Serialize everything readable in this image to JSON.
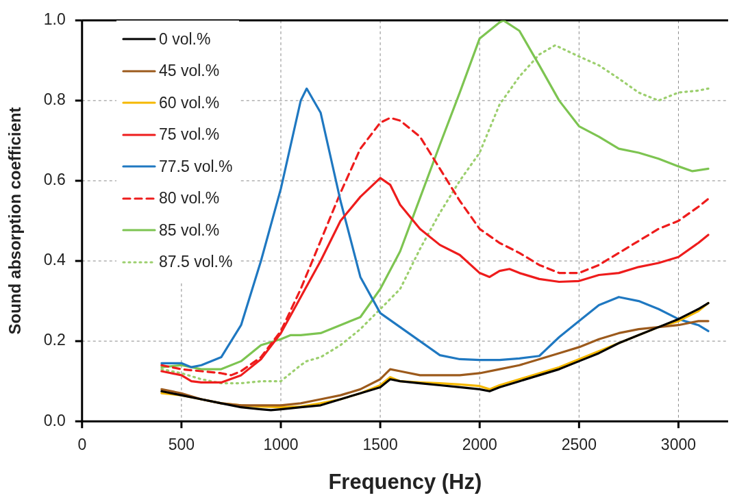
{
  "chart_data": {
    "type": "line",
    "xlabel": "Frequency (Hz)",
    "ylabel": "Sound absorption coefficient",
    "xlim": [
      0,
      3250
    ],
    "xticks": [
      0,
      500,
      1000,
      1500,
      2000,
      2500,
      3000
    ],
    "ylim": [
      0,
      1.0
    ],
    "yticks": [
      {
        "value": 0,
        "label": "0.0"
      },
      0.2,
      0.4,
      0.6,
      0.8,
      {
        "value": 1.0,
        "label": "1.0"
      }
    ],
    "grid": true,
    "legend": "top left",
    "marker": "none",
    "series": [
      {
        "name": "0 vol.%",
        "color": "#000000",
        "line_style": "solid",
        "x": [
          400,
          500,
          600,
          700,
          800,
          900,
          950,
          1000,
          1100,
          1200,
          1300,
          1400,
          1500,
          1550,
          1600,
          1700,
          1800,
          1900,
          2000,
          2050,
          2100,
          2200,
          2300,
          2400,
          2500,
          2600,
          2700,
          2800,
          2900,
          3000,
          3100,
          3150
        ],
        "values": [
          0.075,
          0.065,
          0.055,
          0.045,
          0.035,
          0.03,
          0.028,
          0.03,
          0.035,
          0.04,
          0.055,
          0.07,
          0.085,
          0.105,
          0.1,
          0.095,
          0.09,
          0.085,
          0.08,
          0.075,
          0.085,
          0.1,
          0.115,
          0.13,
          0.15,
          0.17,
          0.195,
          0.215,
          0.235,
          0.255,
          0.28,
          0.295
        ]
      },
      {
        "name": "45 vol.%",
        "color": "#9c5a1c",
        "line_style": "solid",
        "x": [
          400,
          500,
          600,
          700,
          800,
          900,
          1000,
          1100,
          1200,
          1300,
          1400,
          1500,
          1550,
          1600,
          1700,
          1800,
          1900,
          2000,
          2100,
          2200,
          2300,
          2400,
          2500,
          2600,
          2700,
          2800,
          2900,
          3000,
          3100,
          3150
        ],
        "values": [
          0.08,
          0.07,
          0.055,
          0.045,
          0.04,
          0.04,
          0.04,
          0.045,
          0.055,
          0.065,
          0.08,
          0.105,
          0.13,
          0.125,
          0.115,
          0.115,
          0.115,
          0.12,
          0.13,
          0.14,
          0.155,
          0.17,
          0.185,
          0.205,
          0.22,
          0.23,
          0.235,
          0.24,
          0.25,
          0.25
        ]
      },
      {
        "name": "60 vol.%",
        "color": "#f5b800",
        "line_style": "solid",
        "x": [
          400,
          500,
          600,
          700,
          800,
          900,
          1000,
          1100,
          1200,
          1300,
          1400,
          1500,
          1550,
          1600,
          1700,
          1800,
          1900,
          2000,
          2050,
          2100,
          2200,
          2300,
          2400,
          2500,
          2600,
          2700,
          2800,
          2900,
          3000,
          3100,
          3150
        ],
        "values": [
          0.07,
          0.065,
          0.055,
          0.045,
          0.04,
          0.037,
          0.035,
          0.037,
          0.045,
          0.055,
          0.07,
          0.09,
          0.11,
          0.1,
          0.097,
          0.095,
          0.092,
          0.088,
          0.08,
          0.09,
          0.105,
          0.12,
          0.135,
          0.155,
          0.175,
          0.195,
          0.215,
          0.235,
          0.25,
          0.275,
          0.295
        ]
      },
      {
        "name": "75 vol.%",
        "color": "#ee1c1c",
        "line_style": "solid",
        "x": [
          400,
          500,
          550,
          600,
          700,
          800,
          900,
          1000,
          1100,
          1200,
          1300,
          1400,
          1500,
          1550,
          1600,
          1700,
          1800,
          1900,
          2000,
          2050,
          2100,
          2150,
          2200,
          2300,
          2400,
          2500,
          2600,
          2700,
          2800,
          2900,
          3000,
          3100,
          3150
        ],
        "values": [
          0.125,
          0.115,
          0.1,
          0.097,
          0.097,
          0.115,
          0.155,
          0.22,
          0.31,
          0.4,
          0.5,
          0.56,
          0.607,
          0.59,
          0.54,
          0.48,
          0.44,
          0.415,
          0.37,
          0.36,
          0.375,
          0.38,
          0.37,
          0.355,
          0.348,
          0.35,
          0.365,
          0.37,
          0.385,
          0.395,
          0.41,
          0.445,
          0.465
        ]
      },
      {
        "name": "77.5 vol.%",
        "color": "#1f78c1",
        "line_style": "solid",
        "x": [
          400,
          500,
          550,
          600,
          700,
          800,
          900,
          1000,
          1100,
          1130,
          1200,
          1300,
          1400,
          1500,
          1600,
          1700,
          1800,
          1900,
          2000,
          2100,
          2200,
          2300,
          2400,
          2500,
          2600,
          2700,
          2800,
          2900,
          3000,
          3100,
          3150
        ],
        "values": [
          0.145,
          0.145,
          0.135,
          0.14,
          0.16,
          0.24,
          0.4,
          0.58,
          0.8,
          0.83,
          0.77,
          0.55,
          0.36,
          0.27,
          0.235,
          0.2,
          0.165,
          0.155,
          0.153,
          0.153,
          0.157,
          0.163,
          0.21,
          0.25,
          0.29,
          0.31,
          0.3,
          0.28,
          0.255,
          0.24,
          0.225
        ]
      },
      {
        "name": "80 vol.%",
        "color": "#ee1c1c",
        "line_style": "dashed",
        "x": [
          400,
          500,
          600,
          700,
          750,
          800,
          900,
          1000,
          1100,
          1200,
          1300,
          1400,
          1500,
          1550,
          1600,
          1700,
          1800,
          1900,
          2000,
          2100,
          2200,
          2300,
          2400,
          2500,
          2600,
          2700,
          2800,
          2900,
          3000,
          3100,
          3150
        ],
        "values": [
          0.14,
          0.13,
          0.125,
          0.12,
          0.115,
          0.125,
          0.16,
          0.225,
          0.33,
          0.45,
          0.57,
          0.68,
          0.745,
          0.757,
          0.75,
          0.71,
          0.63,
          0.55,
          0.48,
          0.445,
          0.42,
          0.39,
          0.37,
          0.37,
          0.39,
          0.42,
          0.45,
          0.48,
          0.5,
          0.535,
          0.555
        ]
      },
      {
        "name": "85 vol.%",
        "color": "#7dc451",
        "line_style": "solid",
        "x": [
          400,
          500,
          600,
          700,
          800,
          900,
          1000,
          1050,
          1100,
          1200,
          1300,
          1400,
          1500,
          1600,
          1700,
          1800,
          1900,
          2000,
          2100,
          2120,
          2200,
          2300,
          2400,
          2500,
          2600,
          2700,
          2800,
          2900,
          3000,
          3070,
          3150
        ],
        "values": [
          0.135,
          0.14,
          0.13,
          0.13,
          0.15,
          0.19,
          0.205,
          0.215,
          0.215,
          0.22,
          0.24,
          0.26,
          0.33,
          0.424,
          0.557,
          0.69,
          0.82,
          0.955,
          0.995,
          1.0,
          0.974,
          0.888,
          0.8,
          0.736,
          0.71,
          0.68,
          0.67,
          0.655,
          0.636,
          0.624,
          0.63
        ]
      },
      {
        "name": "87.5 vol.%",
        "color": "#9ccf6e",
        "line_style": "dotted",
        "x": [
          400,
          500,
          600,
          700,
          800,
          900,
          1000,
          1100,
          1130,
          1200,
          1300,
          1400,
          1500,
          1600,
          1700,
          1800,
          1900,
          2000,
          2100,
          2200,
          2300,
          2380,
          2500,
          2600,
          2700,
          2800,
          2900,
          3000,
          3100,
          3150
        ],
        "values": [
          0.13,
          0.12,
          0.105,
          0.095,
          0.095,
          0.1,
          0.1,
          0.14,
          0.15,
          0.16,
          0.19,
          0.23,
          0.28,
          0.33,
          0.43,
          0.52,
          0.6,
          0.67,
          0.79,
          0.86,
          0.915,
          0.938,
          0.91,
          0.888,
          0.855,
          0.82,
          0.8,
          0.82,
          0.825,
          0.83
        ]
      }
    ]
  }
}
